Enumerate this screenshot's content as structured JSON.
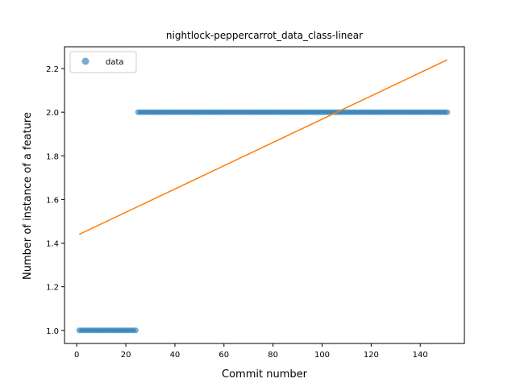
{
  "chart_data": {
    "type": "scatter",
    "title": "nightlock-peppercarrot_data_class-linear",
    "xlabel": "Commit number",
    "ylabel": "Number of instance of a feature",
    "xlim": [
      -5,
      158
    ],
    "ylim": [
      0.94,
      2.3
    ],
    "xticks": [
      0,
      20,
      40,
      60,
      80,
      100,
      120,
      140
    ],
    "yticks": [
      1.0,
      1.2,
      1.4,
      1.6,
      1.8,
      2.0,
      2.2
    ],
    "ytick_labels": [
      "1.0",
      "1.2",
      "1.4",
      "1.6",
      "1.8",
      "2.0",
      "2.2"
    ],
    "legend": {
      "placement": "upper-left",
      "entries": [
        "data"
      ]
    },
    "grid": false,
    "series": [
      {
        "name": "data",
        "kind": "scatter",
        "color": "#1f77b4",
        "segments": [
          {
            "x_start": 1,
            "x_end": 24,
            "y": 1
          },
          {
            "x_start": 25,
            "x_end": 151,
            "y": 2
          }
        ]
      },
      {
        "kind": "line",
        "color": "#ff7f0e",
        "x": [
          1,
          151
        ],
        "y": [
          1.44,
          2.24
        ]
      }
    ]
  }
}
